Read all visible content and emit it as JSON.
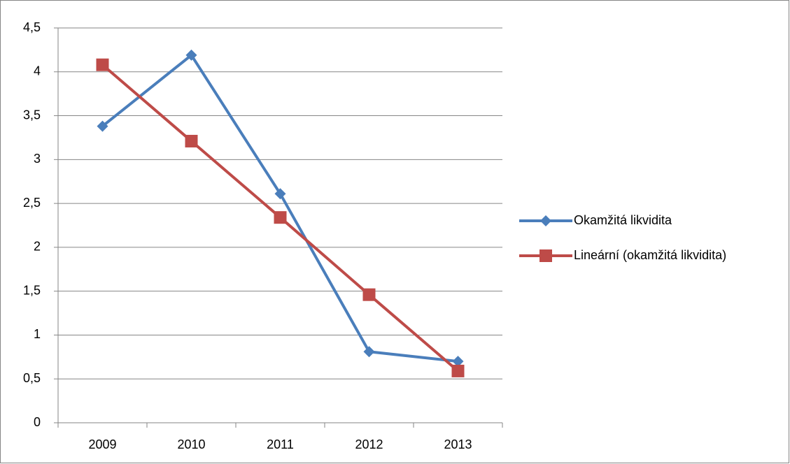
{
  "chart_data": {
    "type": "line",
    "categories": [
      "2009",
      "2010",
      "2011",
      "2012",
      "2013"
    ],
    "series": [
      {
        "name": "Okamžitá likvidita",
        "color": "#4a7ebb",
        "marker": "diamond",
        "values": [
          3.38,
          4.19,
          2.61,
          0.81,
          0.7
        ]
      },
      {
        "name": "Lineární (okamžitá likvidita)",
        "color": "#be4b48",
        "marker": "square",
        "values": [
          4.08,
          3.21,
          2.34,
          1.46,
          0.59
        ]
      }
    ],
    "ylim": [
      0,
      4.5
    ],
    "yticks": [
      0,
      {
        "value": 0.5,
        "label": "0,5"
      },
      1,
      {
        "value": 1.5,
        "label": "1,5"
      },
      2,
      {
        "value": 2.5,
        "label": "2,5"
      },
      3,
      {
        "value": 3.5,
        "label": "3,5"
      },
      4,
      {
        "value": 4.5,
        "label": "4,5"
      }
    ],
    "grid": true,
    "legend": "right"
  }
}
